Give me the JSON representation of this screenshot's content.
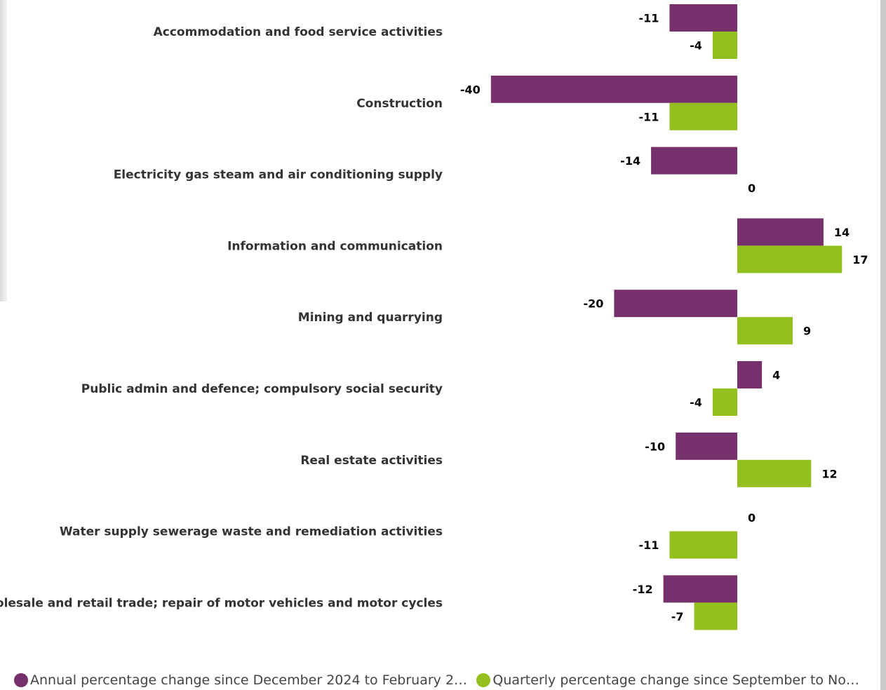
{
  "chart_data": {
    "type": "bar",
    "orientation": "horizontal",
    "categories": [
      "Accommodation and food service activities",
      "Construction",
      "Electricity gas steam and air conditioning supply",
      "Information and communication",
      "Mining and quarrying",
      "Public admin and defence; compulsory social security",
      "Real estate activities",
      "Water supply sewerage waste and remediation activities",
      "Wholesale and retail trade; repair of motor vehicles and motor cycles"
    ],
    "series": [
      {
        "name": "Annual percentage change since December 2024 to February 2025",
        "color": "#76306c",
        "values": [
          -11,
          -40,
          -14,
          14,
          -20,
          4,
          -10,
          0,
          -12
        ]
      },
      {
        "name": "Quarterly percentage change since September to Nove...",
        "color": "#93c01f",
        "values": [
          -4,
          -11,
          0,
          17,
          9,
          -4,
          12,
          -11,
          -7
        ]
      }
    ],
    "data_labels": true,
    "grid": false,
    "legend": "bottom-left"
  }
}
